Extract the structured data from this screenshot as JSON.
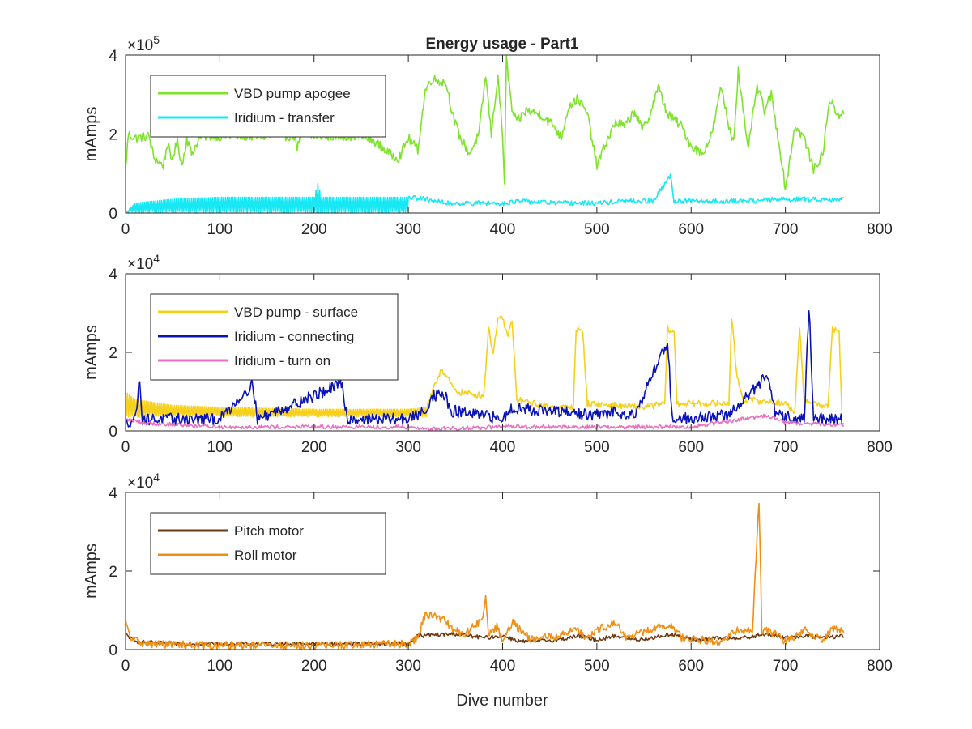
{
  "figure": {
    "background": "#ffffff",
    "xlabel": "Dive number"
  },
  "chart_data": [
    {
      "type": "line",
      "title": "Energy usage - Part1",
      "xlabel": "",
      "ylabel": "mAmps",
      "exponent_base": "×10",
      "exponent_power": "5",
      "xlim": [
        0,
        800
      ],
      "ylim": [
        0,
        4
      ],
      "xticks": [
        "0",
        "100",
        "200",
        "300",
        "400",
        "500",
        "600",
        "700",
        "800"
      ],
      "yticks": [
        "0",
        "2",
        "4"
      ],
      "legend_position": "top-left",
      "series": [
        {
          "name": "VBD pump apogee",
          "color": "#7de32b",
          "noise": 0.12,
          "points": [
            [
              0,
              1.1
            ],
            [
              3,
              2.0
            ],
            [
              10,
              1.9
            ],
            [
              25,
              1.95
            ],
            [
              30,
              1.4
            ],
            [
              40,
              1.2
            ],
            [
              45,
              1.8
            ],
            [
              48,
              1.3
            ],
            [
              55,
              1.8
            ],
            [
              60,
              1.2
            ],
            [
              65,
              1.9
            ],
            [
              70,
              1.5
            ],
            [
              80,
              1.95
            ],
            [
              100,
              1.95
            ],
            [
              150,
              1.95
            ],
            [
              180,
              1.95
            ],
            [
              182,
              1.65
            ],
            [
              186,
              1.95
            ],
            [
              250,
              1.95
            ],
            [
              265,
              1.8
            ],
            [
              280,
              1.5
            ],
            [
              290,
              1.4
            ],
            [
              300,
              1.9
            ],
            [
              310,
              1.6
            ],
            [
              318,
              3.1
            ],
            [
              325,
              3.4
            ],
            [
              340,
              3.3
            ],
            [
              348,
              2.4
            ],
            [
              355,
              1.9
            ],
            [
              365,
              1.5
            ],
            [
              375,
              2.0
            ],
            [
              382,
              3.5
            ],
            [
              388,
              2.0
            ],
            [
              395,
              3.5
            ],
            [
              400,
              1.9
            ],
            [
              402,
              0.8
            ],
            [
              404,
              3.9
            ],
            [
              410,
              2.6
            ],
            [
              415,
              2.3
            ],
            [
              425,
              2.6
            ],
            [
              440,
              2.5
            ],
            [
              455,
              2.2
            ],
            [
              462,
              1.9
            ],
            [
              470,
              2.7
            ],
            [
              480,
              2.9
            ],
            [
              490,
              2.5
            ],
            [
              500,
              1.2
            ],
            [
              510,
              1.8
            ],
            [
              520,
              2.3
            ],
            [
              530,
              2.2
            ],
            [
              540,
              2.6
            ],
            [
              548,
              2.1
            ],
            [
              555,
              2.4
            ],
            [
              565,
              3.2
            ],
            [
              575,
              2.5
            ],
            [
              590,
              2.2
            ],
            [
              600,
              1.7
            ],
            [
              612,
              1.5
            ],
            [
              622,
              2.0
            ],
            [
              632,
              3.2
            ],
            [
              640,
              2.2
            ],
            [
              645,
              1.8
            ],
            [
              650,
              3.6
            ],
            [
              660,
              1.6
            ],
            [
              670,
              3.2
            ],
            [
              678,
              2.6
            ],
            [
              685,
              3.0
            ],
            [
              695,
              1.5
            ],
            [
              700,
              0.6
            ],
            [
              710,
              2.2
            ],
            [
              720,
              1.9
            ],
            [
              730,
              1.1
            ],
            [
              740,
              1.5
            ],
            [
              745,
              2.6
            ],
            [
              750,
              2.9
            ],
            [
              755,
              2.4
            ],
            [
              762,
              2.6
            ]
          ]
        },
        {
          "name": "Iridium - transfer",
          "color": "#18e8f4",
          "noise": 0.06,
          "spiky": [
            0,
            300
          ],
          "spike_lo": 0.0,
          "points": [
            [
              0,
              0.0
            ],
            [
              10,
              0.25
            ],
            [
              50,
              0.35
            ],
            [
              100,
              0.4
            ],
            [
              150,
              0.4
            ],
            [
              200,
              0.4
            ],
            [
              204,
              0.75
            ],
            [
              208,
              0.4
            ],
            [
              250,
              0.4
            ],
            [
              300,
              0.4
            ],
            [
              320,
              0.35
            ],
            [
              340,
              0.25
            ],
            [
              400,
              0.25
            ],
            [
              420,
              0.3
            ],
            [
              460,
              0.25
            ],
            [
              500,
              0.25
            ],
            [
              530,
              0.3
            ],
            [
              560,
              0.3
            ],
            [
              578,
              0.95
            ],
            [
              582,
              0.3
            ],
            [
              640,
              0.3
            ],
            [
              700,
              0.35
            ],
            [
              740,
              0.35
            ],
            [
              762,
              0.35
            ]
          ]
        }
      ]
    },
    {
      "type": "line",
      "title": "",
      "xlabel": "",
      "ylabel": "mAmps",
      "exponent_base": "×10",
      "exponent_power": "4",
      "xlim": [
        0,
        800
      ],
      "ylim": [
        0,
        4
      ],
      "xticks": [
        "0",
        "100",
        "200",
        "300",
        "400",
        "500",
        "600",
        "700",
        "800"
      ],
      "yticks": [
        "0",
        "2",
        "4"
      ],
      "legend_position": "top-left",
      "series": [
        {
          "name": "VBD pump - surface",
          "color": "#f6d01b",
          "noise": 0.08,
          "spiky": [
            0,
            320
          ],
          "spike_lo": 0.35,
          "points": [
            [
              0,
              1.0
            ],
            [
              10,
              0.8
            ],
            [
              50,
              0.65
            ],
            [
              100,
              0.6
            ],
            [
              200,
              0.55
            ],
            [
              300,
              0.55
            ],
            [
              320,
              0.6
            ],
            [
              335,
              1.6
            ],
            [
              350,
              1.0
            ],
            [
              380,
              0.9
            ],
            [
              385,
              2.6
            ],
            [
              390,
              2.0
            ],
            [
              395,
              2.8
            ],
            [
              400,
              2.9
            ],
            [
              405,
              2.4
            ],
            [
              410,
              2.8
            ],
            [
              415,
              0.8
            ],
            [
              450,
              0.6
            ],
            [
              475,
              0.6
            ],
            [
              478,
              2.6
            ],
            [
              485,
              2.5
            ],
            [
              490,
              0.7
            ],
            [
              550,
              0.6
            ],
            [
              572,
              0.7
            ],
            [
              575,
              2.6
            ],
            [
              582,
              2.5
            ],
            [
              585,
              0.7
            ],
            [
              640,
              0.7
            ],
            [
              643,
              2.9
            ],
            [
              648,
              1.5
            ],
            [
              655,
              0.8
            ],
            [
              700,
              0.7
            ],
            [
              710,
              0.5
            ],
            [
              715,
              2.6
            ],
            [
              720,
              0.8
            ],
            [
              745,
              0.6
            ],
            [
              750,
              2.6
            ],
            [
              757,
              2.5
            ],
            [
              760,
              0.5
            ]
          ]
        },
        {
          "name": "Iridium - connecting",
          "color": "#0a14b4",
          "noise": 0.15,
          "points": [
            [
              0,
              0.2
            ],
            [
              10,
              0.3
            ],
            [
              15,
              1.3
            ],
            [
              18,
              0.3
            ],
            [
              50,
              0.3
            ],
            [
              100,
              0.3
            ],
            [
              135,
              1.2
            ],
            [
              140,
              0.3
            ],
            [
              230,
              1.2
            ],
            [
              235,
              0.3
            ],
            [
              300,
              0.3
            ],
            [
              318,
              0.5
            ],
            [
              325,
              0.9
            ],
            [
              340,
              0.9
            ],
            [
              345,
              0.4
            ],
            [
              350,
              0.5
            ],
            [
              400,
              0.3
            ],
            [
              410,
              0.6
            ],
            [
              450,
              0.5
            ],
            [
              500,
              0.4
            ],
            [
              520,
              0.5
            ],
            [
              540,
              0.4
            ],
            [
              575,
              2.3
            ],
            [
              580,
              0.3
            ],
            [
              640,
              0.4
            ],
            [
              680,
              1.4
            ],
            [
              690,
              0.4
            ],
            [
              720,
              0.3
            ],
            [
              725,
              3.2
            ],
            [
              730,
              0.3
            ],
            [
              762,
              0.3
            ]
          ]
        },
        {
          "name": "Iridium - turn on",
          "color": "#e971bf",
          "noise": 0.05,
          "points": [
            [
              0,
              0.3
            ],
            [
              20,
              0.2
            ],
            [
              100,
              0.1
            ],
            [
              200,
              0.1
            ],
            [
              300,
              0.1
            ],
            [
              320,
              0.05
            ],
            [
              400,
              0.1
            ],
            [
              500,
              0.1
            ],
            [
              600,
              0.1
            ],
            [
              680,
              0.4
            ],
            [
              700,
              0.2
            ],
            [
              762,
              0.15
            ]
          ]
        }
      ]
    },
    {
      "type": "line",
      "title": "",
      "xlabel": "Dive number",
      "ylabel": "mAmps",
      "exponent_base": "×10",
      "exponent_power": "4",
      "xlim": [
        0,
        800
      ],
      "ylim": [
        0,
        4
      ],
      "xticks": [
        "0",
        "100",
        "200",
        "300",
        "400",
        "500",
        "600",
        "700",
        "800"
      ],
      "yticks": [
        "0",
        "2",
        "4"
      ],
      "legend_position": "top-left",
      "series": [
        {
          "name": "Pitch motor",
          "color": "#6e3a12",
          "noise": 0.05,
          "points": [
            [
              0,
              0.4
            ],
            [
              10,
              0.2
            ],
            [
              50,
              0.15
            ],
            [
              100,
              0.15
            ],
            [
              150,
              0.15
            ],
            [
              200,
              0.15
            ],
            [
              250,
              0.15
            ],
            [
              300,
              0.15
            ],
            [
              310,
              0.35
            ],
            [
              350,
              0.4
            ],
            [
              380,
              0.3
            ],
            [
              400,
              0.35
            ],
            [
              420,
              0.2
            ],
            [
              460,
              0.25
            ],
            [
              480,
              0.35
            ],
            [
              500,
              0.25
            ],
            [
              520,
              0.35
            ],
            [
              540,
              0.25
            ],
            [
              560,
              0.3
            ],
            [
              580,
              0.4
            ],
            [
              600,
              0.25
            ],
            [
              640,
              0.3
            ],
            [
              660,
              0.3
            ],
            [
              680,
              0.4
            ],
            [
              700,
              0.3
            ],
            [
              720,
              0.35
            ],
            [
              740,
              0.3
            ],
            [
              762,
              0.35
            ]
          ]
        },
        {
          "name": "Roll motor",
          "color": "#ef8f13",
          "noise": 0.1,
          "points": [
            [
              0,
              0.7
            ],
            [
              5,
              0.3
            ],
            [
              20,
              0.15
            ],
            [
              100,
              0.1
            ],
            [
              200,
              0.1
            ],
            [
              300,
              0.15
            ],
            [
              310,
              0.3
            ],
            [
              318,
              0.9
            ],
            [
              335,
              0.8
            ],
            [
              348,
              0.5
            ],
            [
              360,
              0.4
            ],
            [
              375,
              0.7
            ],
            [
              380,
              0.9
            ],
            [
              382,
              1.45
            ],
            [
              385,
              0.4
            ],
            [
              395,
              0.6
            ],
            [
              400,
              0.15
            ],
            [
              410,
              0.7
            ],
            [
              430,
              0.25
            ],
            [
              470,
              0.4
            ],
            [
              475,
              0.6
            ],
            [
              490,
              0.3
            ],
            [
              500,
              0.5
            ],
            [
              520,
              0.7
            ],
            [
              530,
              0.3
            ],
            [
              570,
              0.6
            ],
            [
              580,
              0.6
            ],
            [
              590,
              0.3
            ],
            [
              630,
              0.2
            ],
            [
              650,
              0.5
            ],
            [
              665,
              0.5
            ],
            [
              672,
              3.8
            ],
            [
              675,
              0.5
            ],
            [
              690,
              0.4
            ],
            [
              700,
              0.2
            ],
            [
              720,
              0.5
            ],
            [
              740,
              0.25
            ],
            [
              750,
              0.55
            ],
            [
              762,
              0.5
            ]
          ]
        }
      ]
    }
  ]
}
